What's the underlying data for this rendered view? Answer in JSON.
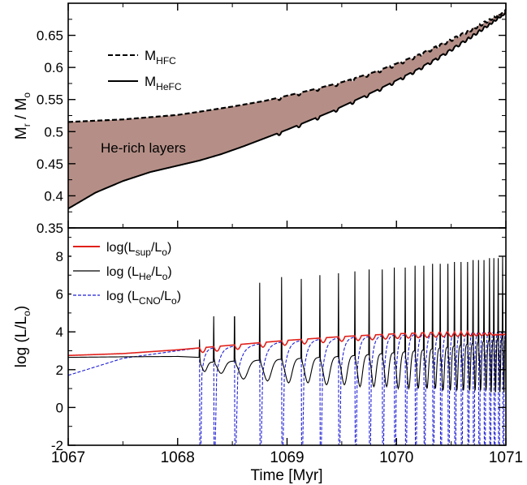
{
  "chart_data": [
    {
      "type": "area",
      "panel": "top",
      "ylabel": "M_r / M_o",
      "xlim": [
        1067,
        1071
      ],
      "ylim": [
        0.35,
        0.7
      ],
      "yticks": [
        0.35,
        0.4,
        0.45,
        0.5,
        0.55,
        0.6,
        0.65
      ],
      "ytick_labels": [
        "0.35",
        "0.4",
        "0.45",
        "0.5",
        "0.55",
        "0.6",
        "0.65"
      ],
      "annotation": "He-rich layers",
      "fill_color": "#b58f87",
      "legend_position": "top-left",
      "legend": [
        {
          "main": "M",
          "sub": "HFC",
          "style": "dashed"
        },
        {
          "main": "M",
          "sub": "HeFC",
          "style": "solid"
        }
      ],
      "series": [
        {
          "name": "M_HFC",
          "style": "dashed",
          "color": "#000000",
          "x": [
            1067,
            1067.5,
            1068,
            1068.2,
            1068.5,
            1068.8,
            1069,
            1069.2,
            1069.5,
            1069.8,
            1070,
            1070.2,
            1070.4,
            1070.6,
            1070.8,
            1071
          ],
          "y": [
            0.515,
            0.519,
            0.526,
            0.531,
            0.539,
            0.548,
            0.556,
            0.564,
            0.577,
            0.593,
            0.606,
            0.62,
            0.636,
            0.653,
            0.671,
            0.691
          ]
        },
        {
          "name": "M_HeFC",
          "style": "solid",
          "color": "#000000",
          "x": [
            1067,
            1067.25,
            1067.5,
            1067.75,
            1068,
            1068.2,
            1068.4,
            1068.6,
            1068.8,
            1069,
            1069.2,
            1069.4,
            1069.6,
            1069.8,
            1070,
            1070.2,
            1070.4,
            1070.6,
            1070.8,
            1071
          ],
          "y": [
            0.38,
            0.405,
            0.423,
            0.437,
            0.447,
            0.455,
            0.465,
            0.477,
            0.49,
            0.503,
            0.517,
            0.531,
            0.547,
            0.563,
            0.58,
            0.598,
            0.618,
            0.64,
            0.663,
            0.688
          ]
        }
      ]
    },
    {
      "type": "line",
      "panel": "bottom",
      "xlabel": "Time [Myr]",
      "ylabel": "log (L/L_o)",
      "xlim": [
        1067,
        1071
      ],
      "ylim": [
        -2,
        9.5
      ],
      "xticks": [
        1067,
        1068,
        1069,
        1070,
        1071
      ],
      "xtick_labels": [
        "1067",
        "1068",
        "1069",
        "1070",
        "1071"
      ],
      "yticks": [
        -2,
        0,
        2,
        4,
        6,
        8
      ],
      "ytick_labels": [
        "-2",
        "0",
        "2",
        "4",
        "6",
        "8"
      ],
      "legend_position": "top-left",
      "legend": [
        {
          "pre": "log(L",
          "sub": "sup",
          "post": "/L",
          "sub2": "o",
          "end": ")",
          "color": "#e0201b",
          "style": "solid"
        },
        {
          "pre": "log (L",
          "sub": "He",
          "post": "/L",
          "sub2": "o",
          "end": ")",
          "color": "#000000",
          "style": "solid"
        },
        {
          "pre": "log (L",
          "sub": "CNO",
          "post": "/L",
          "sub2": "o",
          "end": ")",
          "color": "#1f1fd6",
          "style": "dashed"
        }
      ],
      "pulse_times": [
        1068.2,
        1068.33,
        1068.52,
        1068.75,
        1068.95,
        1069.13,
        1069.3,
        1069.47,
        1069.62,
        1069.75,
        1069.87,
        1069.98,
        1070.08,
        1070.17,
        1070.25,
        1070.33,
        1070.4,
        1070.47,
        1070.53,
        1070.59,
        1070.65,
        1070.7,
        1070.75,
        1070.8,
        1070.85,
        1070.89,
        1070.93,
        1070.97,
        1071.0
      ],
      "series": [
        {
          "name": "log(L_sup/L_o)",
          "color": "#e0201b",
          "style": "solid",
          "x": [
            1067,
            1067.5,
            1068,
            1068.2,
            1068.5,
            1069,
            1069.5,
            1070,
            1070.5,
            1071
          ],
          "y": [
            2.75,
            2.85,
            3.05,
            3.15,
            3.3,
            3.55,
            3.75,
            3.9,
            4.0,
            4.1
          ]
        },
        {
          "name": "log (L_He/L_o)",
          "color": "#000000",
          "style": "solid",
          "x": [
            1067,
            1067.5,
            1068,
            1068.2
          ],
          "y": [
            2.65,
            2.68,
            2.7,
            2.65
          ],
          "pulse_peaks": [
            3.6,
            4.9,
            5.9,
            6.6,
            6.9,
            6.8,
            7.0,
            7.1,
            7.2,
            7.3,
            7.3,
            7.4,
            7.4,
            7.5,
            7.5,
            7.6,
            7.6,
            7.6,
            7.7,
            7.7,
            7.7,
            7.8,
            7.8,
            7.8,
            7.9,
            7.9,
            7.9,
            8.0,
            8.0
          ],
          "interpulse_minima": [
            1.9,
            1.8,
            1.5,
            1.4,
            1.3,
            1.3,
            1.2,
            1.2,
            1.1,
            1.1,
            1.1,
            1.0,
            1.0,
            1.0,
            1.0,
            1.0,
            0.9,
            0.9,
            0.9,
            0.9,
            0.9,
            0.9,
            0.9,
            0.9,
            0.8,
            0.8,
            0.8,
            0.8
          ]
        },
        {
          "name": "log (L_CNO/L_o)",
          "color": "#1f1fd6",
          "style": "dashed",
          "x": [
            1067,
            1067.5,
            1068,
            1068.2
          ],
          "y": [
            1.7,
            2.6,
            3.0,
            3.15
          ],
          "dip_minimum": -2
        }
      ]
    }
  ]
}
